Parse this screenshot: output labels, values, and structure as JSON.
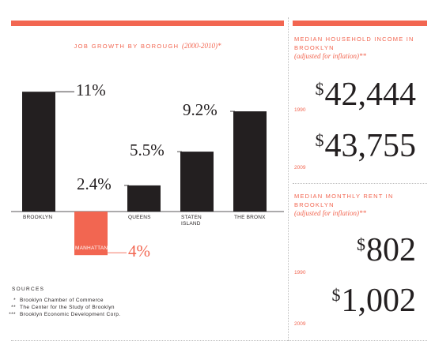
{
  "chart_data": {
    "type": "bar",
    "title": "JOB GROWTH BY BOROUGH",
    "title_years": "(2000-2010)*",
    "categories": [
      "BROOKLYN",
      "MANHATTAN",
      "QUEENS",
      "STATEN ISLAND",
      "THE BRONX"
    ],
    "category_lines": [
      [
        "BROOKLYN"
      ],
      [
        "MANHATTAN"
      ],
      [
        "QUEENS"
      ],
      [
        "STATEN",
        "ISLAND"
      ],
      [
        "THE BRONX"
      ]
    ],
    "values": [
      11,
      -4,
      2.4,
      5.5,
      9.2
    ],
    "value_labels": [
      "11%",
      "4%",
      "2.4%",
      "5.5%",
      "9.2%"
    ],
    "ylim": [
      -4,
      11
    ],
    "colors": {
      "positive": "#231f20",
      "negative": "#f26651"
    },
    "grid": false
  },
  "sources": {
    "title": "SOURCES",
    "items": [
      {
        "mark": "*",
        "text": "Brooklyn Chamber of Commerce"
      },
      {
        "mark": "**",
        "text": "The Center for the Study of Brooklyn"
      },
      {
        "mark": "***",
        "text": "Brooklyn Economic Development Corp."
      }
    ]
  },
  "income": {
    "title": "MEDIAN HOUSEHOLD INCOME IN BROOKLYN",
    "subtitle": "(adjusted for inflation)**",
    "entries": [
      {
        "year": "1990",
        "currency": "$",
        "amount": "42,444"
      },
      {
        "year": "2009",
        "currency": "$",
        "amount": "43,755"
      }
    ]
  },
  "rent": {
    "title": "MEDIAN MONTHLY RENT IN BROOKLYN",
    "subtitle": "(adjusted for inflation)**",
    "entries": [
      {
        "year": "1990",
        "currency": "$",
        "amount": "802"
      },
      {
        "year": "2009",
        "currency": "$",
        "amount": "1,002"
      }
    ]
  },
  "colors": {
    "accent": "#f26651",
    "ink": "#231f20"
  }
}
